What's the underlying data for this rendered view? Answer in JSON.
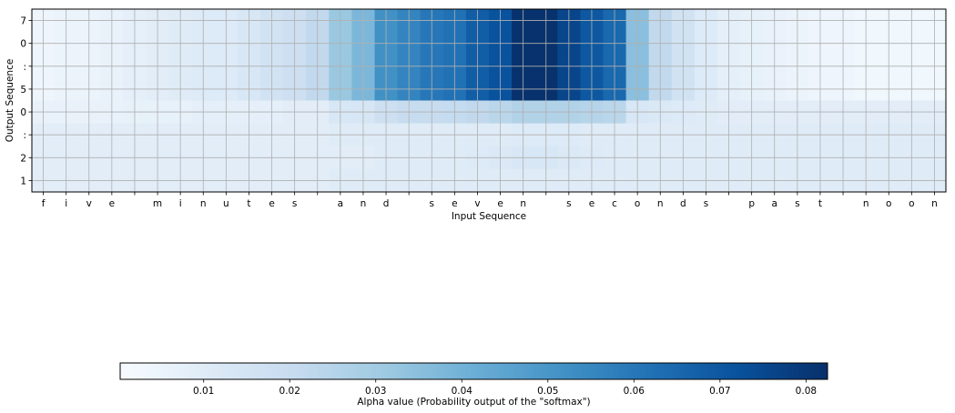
{
  "chart_data": {
    "type": "heatmap",
    "title": "",
    "xlabel": "Input Sequence",
    "ylabel": "Output Sequence",
    "x_tick_labels": [
      "f",
      "i",
      "v",
      "e",
      " ",
      "m",
      "i",
      "n",
      "u",
      "t",
      "e",
      "s",
      " ",
      "a",
      "n",
      "d",
      " ",
      "s",
      "e",
      "v",
      "e",
      "n",
      " ",
      "s",
      "e",
      "c",
      "o",
      "n",
      "d",
      "s",
      " ",
      "p",
      "a",
      "s",
      "t",
      " ",
      "n",
      "o",
      "o",
      "n"
    ],
    "y_tick_labels": [
      "7",
      "0",
      ":",
      "5",
      "0",
      ":",
      "2",
      "1"
    ],
    "colormap": "Blues",
    "colorbar": {
      "label": "Alpha value (Probability output of the \"softmax\")",
      "min": 0.0003,
      "max": 0.0825,
      "ticks": [
        "0.01",
        "0.02",
        "0.03",
        "0.04",
        "0.05",
        "0.06",
        "0.07",
        "0.08"
      ],
      "tick_values": [
        0.01,
        0.02,
        0.03,
        0.04,
        0.05,
        0.06,
        0.07,
        0.08
      ]
    },
    "grid": true,
    "row_profiles": [
      {
        "row": "7",
        "values": [
          0.004,
          0.005,
          0.005,
          0.006,
          0.008,
          0.009,
          0.01,
          0.011,
          0.011,
          0.013,
          0.016,
          0.018,
          0.022,
          0.032,
          0.038,
          0.052,
          0.056,
          0.06,
          0.062,
          0.068,
          0.072,
          0.082,
          0.082,
          0.076,
          0.07,
          0.065,
          0.035,
          0.022,
          0.016,
          0.011,
          0.008,
          0.007,
          0.006,
          0.005,
          0.004,
          0.004,
          0.003,
          0.003,
          0.003,
          0.003
        ]
      },
      {
        "row": "0",
        "values": [
          0.004,
          0.005,
          0.005,
          0.006,
          0.008,
          0.009,
          0.01,
          0.011,
          0.011,
          0.013,
          0.016,
          0.018,
          0.022,
          0.032,
          0.038,
          0.052,
          0.056,
          0.06,
          0.062,
          0.068,
          0.072,
          0.082,
          0.082,
          0.076,
          0.07,
          0.065,
          0.035,
          0.022,
          0.016,
          0.011,
          0.008,
          0.007,
          0.006,
          0.005,
          0.004,
          0.004,
          0.003,
          0.003,
          0.003,
          0.003
        ]
      },
      {
        "row": ":",
        "values": [
          0.004,
          0.005,
          0.005,
          0.006,
          0.008,
          0.009,
          0.01,
          0.011,
          0.011,
          0.013,
          0.016,
          0.018,
          0.022,
          0.032,
          0.038,
          0.052,
          0.056,
          0.06,
          0.062,
          0.068,
          0.072,
          0.082,
          0.082,
          0.076,
          0.07,
          0.065,
          0.035,
          0.022,
          0.016,
          0.011,
          0.008,
          0.007,
          0.006,
          0.005,
          0.004,
          0.004,
          0.003,
          0.003,
          0.003,
          0.003
        ]
      },
      {
        "row": "5",
        "values": [
          0.004,
          0.005,
          0.005,
          0.006,
          0.008,
          0.009,
          0.01,
          0.011,
          0.011,
          0.013,
          0.016,
          0.018,
          0.022,
          0.032,
          0.038,
          0.052,
          0.056,
          0.06,
          0.062,
          0.068,
          0.072,
          0.082,
          0.082,
          0.076,
          0.07,
          0.065,
          0.035,
          0.022,
          0.016,
          0.011,
          0.008,
          0.007,
          0.006,
          0.005,
          0.004,
          0.004,
          0.003,
          0.003,
          0.003,
          0.003
        ]
      },
      {
        "row": "0",
        "values": [
          0.006,
          0.006,
          0.006,
          0.006,
          0.007,
          0.007,
          0.007,
          0.008,
          0.008,
          0.008,
          0.008,
          0.009,
          0.009,
          0.013,
          0.014,
          0.018,
          0.02,
          0.02,
          0.021,
          0.022,
          0.024,
          0.026,
          0.026,
          0.026,
          0.025,
          0.024,
          0.013,
          0.012,
          0.011,
          0.01,
          0.009,
          0.009,
          0.009,
          0.009,
          0.009,
          0.009,
          0.009,
          0.009,
          0.009,
          0.009
        ]
      },
      {
        "row": ":",
        "values": [
          0.009,
          0.009,
          0.009,
          0.009,
          0.009,
          0.009,
          0.009,
          0.009,
          0.009,
          0.009,
          0.009,
          0.009,
          0.009,
          0.01,
          0.01,
          0.01,
          0.01,
          0.01,
          0.01,
          0.01,
          0.01,
          0.011,
          0.011,
          0.011,
          0.01,
          0.01,
          0.01,
          0.01,
          0.01,
          0.01,
          0.01,
          0.01,
          0.01,
          0.01,
          0.01,
          0.01,
          0.01,
          0.01,
          0.01,
          0.01
        ]
      },
      {
        "row": "2",
        "values": [
          0.009,
          0.009,
          0.009,
          0.009,
          0.009,
          0.009,
          0.009,
          0.009,
          0.009,
          0.009,
          0.009,
          0.009,
          0.009,
          0.009,
          0.009,
          0.01,
          0.01,
          0.01,
          0.01,
          0.011,
          0.012,
          0.013,
          0.013,
          0.012,
          0.011,
          0.01,
          0.01,
          0.01,
          0.01,
          0.01,
          0.01,
          0.01,
          0.01,
          0.01,
          0.01,
          0.01,
          0.01,
          0.01,
          0.01,
          0.01
        ]
      },
      {
        "row": "1",
        "values": [
          0.009,
          0.009,
          0.009,
          0.009,
          0.009,
          0.009,
          0.009,
          0.009,
          0.009,
          0.009,
          0.009,
          0.009,
          0.009,
          0.01,
          0.01,
          0.01,
          0.01,
          0.01,
          0.01,
          0.01,
          0.01,
          0.01,
          0.01,
          0.01,
          0.01,
          0.01,
          0.01,
          0.01,
          0.01,
          0.01,
          0.01,
          0.01,
          0.01,
          0.01,
          0.01,
          0.01,
          0.01,
          0.01,
          0.01,
          0.01
        ]
      }
    ]
  }
}
